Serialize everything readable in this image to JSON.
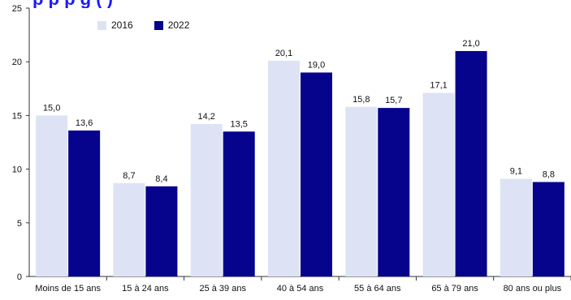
{
  "title_fragment": "p p p g ( )",
  "colors": {
    "s2016": "#dde3f4",
    "s2022": "#06038d",
    "axis": "#333333",
    "text": "#111111",
    "title": "#1a1aff"
  },
  "chart_data": {
    "type": "bar",
    "categories": [
      "Moins de 15 ans",
      "15 à 24 ans",
      "25 à 39 ans",
      "40 à 54 ans",
      "55 à 64 ans",
      "65 à 79 ans",
      "80 ans ou plus"
    ],
    "series": [
      {
        "name": "2016",
        "values": [
          15.0,
          8.7,
          14.2,
          20.1,
          15.8,
          17.1,
          9.1
        ],
        "labels": [
          "15,0",
          "8,7",
          "14,2",
          "20,1",
          "15,8",
          "17,1",
          "9,1"
        ]
      },
      {
        "name": "2022",
        "values": [
          13.6,
          8.4,
          13.5,
          19.0,
          15.7,
          21.0,
          8.8
        ],
        "labels": [
          "13,6",
          "8,4",
          "13,5",
          "19,0",
          "15,7",
          "21,0",
          "8,8"
        ]
      }
    ],
    "ylim": [
      0,
      25
    ],
    "yticks": [
      "0",
      "5",
      "10",
      "15",
      "20",
      "25"
    ],
    "legend_position": "top-left",
    "grid": false
  }
}
